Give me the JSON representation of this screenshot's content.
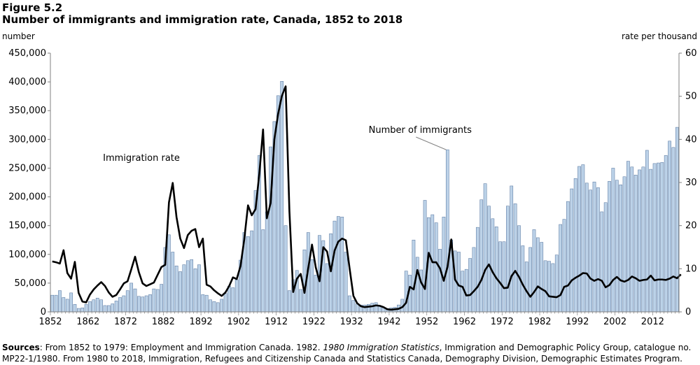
{
  "figure": {
    "label": "Figure 5.2",
    "title": "Number of immigrants and immigration rate, Canada, 1852 to 2018",
    "left_unit": "number",
    "right_unit": "rate per thousand"
  },
  "sources": {
    "label": "Sources",
    "part1": ": From 1852 to 1979: Employment and Immigration Canada. 1982. ",
    "italic": "1980 Immigration Statistics",
    "part2": ", Immigration and Demographic Policy Group, catalogue no. MP22-1/1980.  From 1980 to 2018, Immigration, Refugees and Citizenship Canada and Statistics Canada, Demography Division, Demographic Estimates Program."
  },
  "chart_data": {
    "type": "bar",
    "x_start": 1852,
    "x_end": 2018,
    "x_ticks": [
      "1852",
      "1862",
      "1872",
      "1882",
      "1892",
      "1902",
      "1912",
      "1922",
      "1932",
      "1942",
      "1952",
      "1962",
      "1972",
      "1982",
      "1992",
      "2002",
      "2012"
    ],
    "y_left": {
      "ylim": [
        0,
        450000
      ],
      "ticks": [
        "0",
        "50,000",
        "100,000",
        "150,000",
        "200,000",
        "250,000",
        "300,000",
        "350,000",
        "400,000",
        "450,000"
      ]
    },
    "y_right": {
      "ylim": [
        0,
        60
      ],
      "ticks": [
        "0",
        "10",
        "20",
        "30",
        "40",
        "50",
        "60"
      ]
    },
    "annotations": {
      "immigrants": "Number  of immigrants",
      "rate": "Immigration  rate"
    },
    "colors": {
      "bar_fill": "#bcd2e8",
      "bar_stroke": "#4f6f9a",
      "line": "#000000",
      "axis": "#808080"
    },
    "series": [
      {
        "name": "Number of immigrants",
        "kind": "bar",
        "axis": "left",
        "values": [
          29000,
          29000,
          37000,
          25000,
          22000,
          33000,
          13000,
          6000,
          7000,
          13000,
          18000,
          21000,
          24000,
          21000,
          11000,
          11000,
          14000,
          19000,
          25000,
          28000,
          37000,
          50000,
          40000,
          27000,
          26000,
          28000,
          30000,
          40000,
          39000,
          48000,
          112000,
          134000,
          104000,
          80000,
          70000,
          82000,
          89000,
          91000,
          75000,
          82000,
          30000,
          29000,
          21000,
          18000,
          16000,
          22000,
          32000,
          45000,
          42000,
          56000,
          90000,
          138000,
          131000,
          141000,
          211000,
          272000,
          143000,
          174000,
          287000,
          331000,
          376000,
          401000,
          150000,
          37000,
          56000,
          72000,
          39000,
          108000,
          138000,
          91000,
          64000,
          133000,
          124000,
          84000,
          136000,
          158000,
          166000,
          165000,
          104000,
          28000,
          20000,
          14000,
          12000,
          12000,
          13000,
          15000,
          16000,
          10000,
          7000,
          6000,
          7000,
          8000,
          12000,
          22000,
          71000,
          64000,
          125000,
          95000,
          73000,
          194000,
          164000,
          169000,
          155000,
          109000,
          165000,
          282000,
          125000,
          106000,
          104000,
          71000,
          74000,
          93000,
          112000,
          147000,
          195000,
          223000,
          184000,
          162000,
          148000,
          122000,
          122000,
          184000,
          219000,
          188000,
          150000,
          115000,
          87000,
          112000,
          143000,
          129000,
          121000,
          89000,
          88000,
          84000,
          99000,
          152000,
          161000,
          192000,
          214000,
          232000,
          253000,
          256000,
          224000,
          212000,
          226000,
          216000,
          174000,
          190000,
          227000,
          250000,
          229000,
          221000,
          235000,
          262000,
          252000,
          238000,
          247000,
          252000,
          281000,
          248000,
          258000,
          259000,
          260000,
          272000,
          297000,
          286000,
          321000
        ]
      },
      {
        "name": "Immigration rate",
        "kind": "line",
        "axis": "right",
        "values": [
          11.7,
          11.5,
          11.2,
          14.3,
          9.0,
          7.7,
          11.6,
          4.4,
          2.4,
          2.2,
          4.0,
          5.2,
          6.1,
          6.9,
          6.0,
          4.5,
          3.5,
          3.9,
          5.2,
          6.6,
          7.1,
          9.9,
          12.8,
          9.2,
          6.6,
          6.0,
          6.4,
          6.8,
          8.6,
          10.4,
          10.9,
          25.4,
          29.9,
          22.0,
          17.0,
          14.8,
          17.8,
          18.8,
          19.2,
          15.0,
          17.0,
          6.3,
          5.9,
          5.0,
          4.3,
          3.7,
          4.5,
          6.0,
          8.0,
          7.6,
          10.6,
          16.8,
          24.7,
          22.4,
          23.8,
          32.0,
          42.3,
          21.7,
          25.2,
          40.0,
          45.9,
          50.1,
          52.3,
          23.3,
          4.6,
          7.7,
          8.8,
          4.4,
          10.1,
          15.6,
          10.3,
          7.1,
          15.0,
          14.0,
          9.4,
          14.2,
          16.3,
          17.0,
          16.6,
          10.0,
          3.7,
          2.0,
          1.3,
          1.1,
          1.2,
          1.3,
          1.5,
          1.4,
          1.1,
          0.6,
          0.5,
          0.6,
          0.7,
          1.1,
          2.1,
          5.8,
          5.2,
          9.7,
          6.8,
          5.3,
          13.7,
          11.5,
          11.5,
          10.1,
          7.2,
          10.4,
          16.8,
          7.5,
          6.1,
          5.8,
          3.8,
          3.9,
          4.8,
          5.8,
          7.4,
          9.7,
          11.0,
          9.2,
          7.8,
          6.7,
          5.5,
          5.6,
          8.3,
          9.5,
          8.1,
          6.3,
          4.8,
          3.5,
          4.6,
          5.9,
          5.3,
          4.8,
          3.6,
          3.5,
          3.4,
          3.9,
          5.8,
          6.1,
          7.3,
          7.9,
          8.4,
          9.0,
          8.9,
          7.7,
          7.2,
          7.6,
          7.2,
          5.7,
          6.2,
          7.4,
          8.1,
          7.3,
          7.0,
          7.4,
          8.2,
          7.8,
          7.2,
          7.4,
          7.5,
          8.4,
          7.3,
          7.5,
          7.5,
          7.4,
          7.7,
          8.2,
          7.8,
          8.7
        ]
      }
    ]
  }
}
